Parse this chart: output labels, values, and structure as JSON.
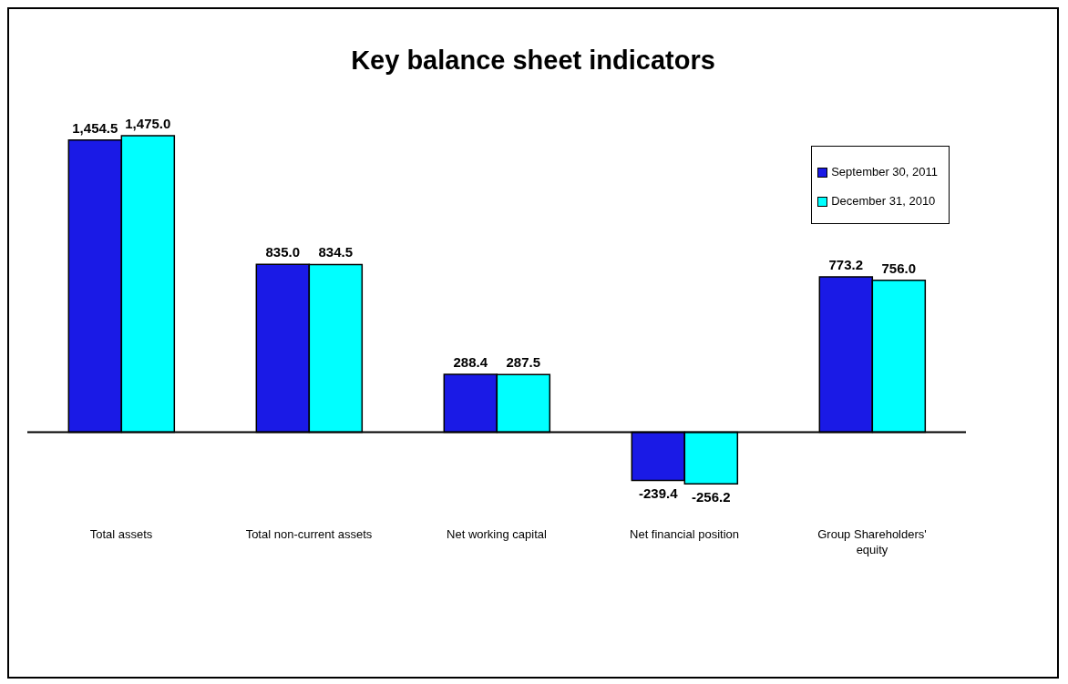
{
  "chart_data": {
    "type": "bar",
    "title": "Key balance sheet indicators",
    "categories": [
      "Total assets",
      "Total non-current assets",
      "Net working capital",
      "Net financial position",
      "Group Shareholders' equity"
    ],
    "series": [
      {
        "name": "September 30, 2011",
        "color": "#1a1ae6",
        "values": [
          1454.5,
          835.0,
          288.4,
          -239.4,
          773.2
        ],
        "value_labels": [
          "1,454.5",
          "835.0",
          "288.4",
          "-239.4",
          "773.2"
        ]
      },
      {
        "name": "December 31, 2010",
        "color": "#00ffff",
        "values": [
          1475.0,
          834.5,
          287.5,
          -256.2,
          756.0
        ],
        "value_labels": [
          "1,475.0",
          "834.5",
          "287.5",
          "-256.2",
          "756.0"
        ]
      }
    ],
    "legend": "top right"
  }
}
